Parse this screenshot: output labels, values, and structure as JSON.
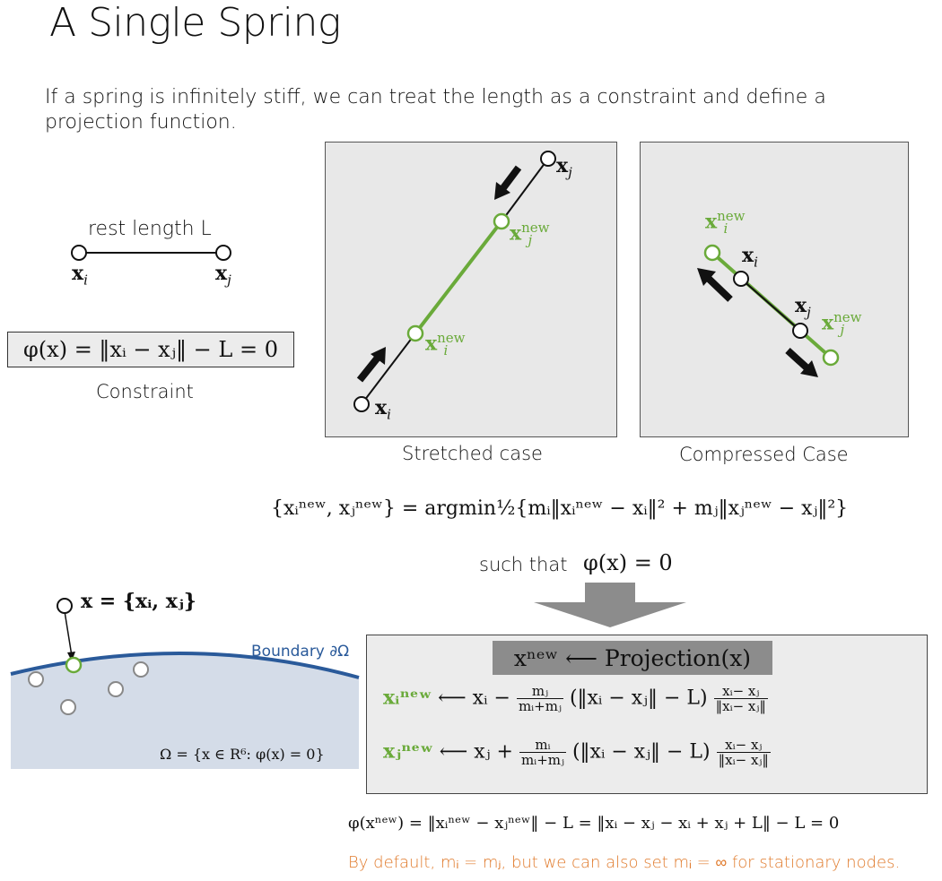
{
  "slide": {
    "title": "A Single Spring",
    "intro": "If a spring is infinitely stiff, we can treat the length as a constraint and define a projection function."
  },
  "spring_diagram": {
    "rest_label": "rest length L",
    "xi": "x",
    "xi_sub": "i",
    "xj": "x",
    "xj_sub": "j"
  },
  "constraint": {
    "formula": "φ(x) = ‖xᵢ −  xⱼ‖ − L = 0",
    "caption": "Constraint"
  },
  "stretched": {
    "caption": "Stretched case",
    "labels": {
      "xj": "x",
      "xj_sub": "j",
      "xj_new": "x",
      "xj_new_sub": "j",
      "xj_new_sup": "new",
      "xi_new": "x",
      "xi_new_sub": "i",
      "xi_new_sup": "new",
      "xi": "x",
      "xi_sub": "i"
    }
  },
  "compressed": {
    "caption": "Compressed Case",
    "labels": {
      "xi_new": "x",
      "xi_new_sub": "i",
      "xi_new_sup": "new",
      "xi": "x",
      "xi_sub": "i",
      "xj": "x",
      "xj_sub": "j",
      "xj_new": "x",
      "xj_new_sub": "j",
      "xj_new_sup": "new"
    }
  },
  "optimization": {
    "lhs": "{xᵢⁿᵉʷ, xⱼⁿᵉʷ} = argmin½{mᵢ‖xᵢⁿᵉʷ − xᵢ‖² + mⱼ‖xⱼⁿᵉʷ − xⱼ‖²}",
    "such_that": "such that",
    "condition": "φ(x) = 0"
  },
  "boundary": {
    "point_label": "x = {xᵢ, xⱼ}",
    "boundary_label": "Boundary ∂Ω",
    "set_def": "Ω = {x ∈ R⁶: φ(x) = 0}"
  },
  "projection": {
    "title": "xⁿᵉʷ ⟵ Projection(x)",
    "eq_i_lhs": "xᵢⁿᵉʷ",
    "eq_i_rhs": "⟵ xᵢ −",
    "eq_i_num": "mⱼ",
    "eq_den": "mᵢ+mⱼ",
    "eq_mid": "(‖xᵢ −  xⱼ‖ − L)",
    "eq_fnum": "xᵢ− xⱼ",
    "eq_fden": "‖xᵢ− xⱼ‖",
    "eq_j_lhs": "xⱼⁿᵉʷ",
    "eq_j_rhs": "⟵ xⱼ +",
    "eq_j_num": "mᵢ"
  },
  "check": {
    "formula": "φ(xⁿᵉʷ) = ‖xᵢⁿᵉʷ − xⱼⁿᵉʷ‖ − L = ‖xᵢ − xⱼ − xᵢ + xⱼ + L‖ − L = 0"
  },
  "note": {
    "text": "By default, mᵢ = mⱼ, but we can also set mᵢ = ∞ for stationary nodes."
  },
  "colors": {
    "green": "#6aaa3a",
    "orange": "#e07a2b",
    "blue_boundary": "#2a5a9a",
    "region": "#d4dce8"
  }
}
